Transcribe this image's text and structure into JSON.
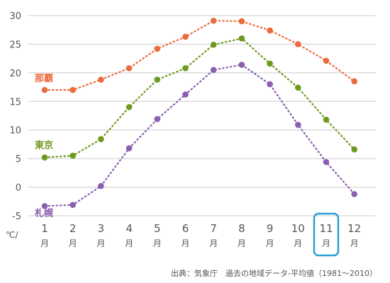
{
  "chart_data": {
    "type": "line",
    "categories": [
      "1月",
      "2月",
      "3月",
      "4月",
      "5月",
      "6月",
      "7月",
      "8月",
      "9月",
      "10月",
      "11月",
      "12月"
    ],
    "category_numbers": [
      "1",
      "2",
      "3",
      "4",
      "5",
      "6",
      "7",
      "8",
      "9",
      "10",
      "11",
      "12"
    ],
    "category_suffix": "月",
    "series": [
      {
        "name": "那覇",
        "color": "#ec6a3c",
        "values": [
          17.0,
          17.0,
          18.8,
          20.8,
          24.2,
          26.3,
          29.1,
          29.0,
          27.4,
          25.0,
          22.1,
          18.5
        ]
      },
      {
        "name": "東京",
        "color": "#6f9a1f",
        "values": [
          5.2,
          5.5,
          8.4,
          14.0,
          18.8,
          20.8,
          24.9,
          26.0,
          21.6,
          17.4,
          11.8,
          6.6
        ]
      },
      {
        "name": "札幌",
        "color": "#8a5fb0",
        "values": [
          -3.3,
          -3.1,
          0.2,
          6.8,
          11.9,
          16.2,
          20.5,
          21.4,
          18.0,
          10.9,
          4.4,
          -1.2
        ]
      }
    ],
    "ylim": [
      -5,
      30
    ],
    "y_ticks": [
      "-5",
      "0",
      "5",
      "10",
      "15",
      "20",
      "25",
      "30"
    ],
    "y_unit": "℃/",
    "highlight_category": "11月",
    "highlight_color": "#2a9fd0",
    "grid": "horizontal",
    "legend": "inline-left",
    "source": "出典：気象庁　過去の地域データ-平均値（1981～2010）"
  }
}
